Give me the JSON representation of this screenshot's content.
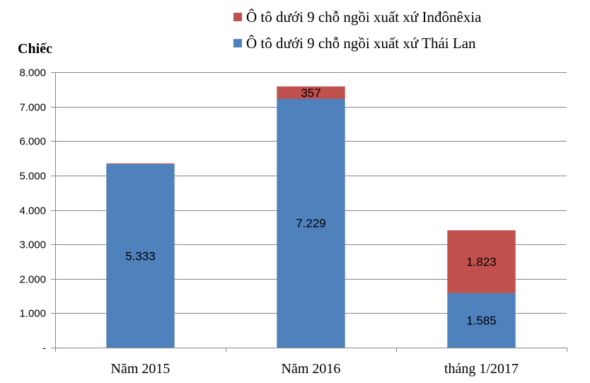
{
  "chart_data": {
    "type": "bar",
    "stacked": true,
    "ylabel": "Chiếc",
    "xlabel": "",
    "ylim": [
      0,
      8000
    ],
    "yticks": [
      0,
      1000,
      2000,
      3000,
      4000,
      5000,
      6000,
      7000,
      8000
    ],
    "ytick_labels": [
      "-",
      "1.000",
      "2.000",
      "3.000",
      "4.000",
      "5.000",
      "6.000",
      "7.000",
      "8.000"
    ],
    "grid": true,
    "legend_position": "top-right",
    "categories": [
      "Năm 2015",
      "Năm 2016",
      "tháng 1/2017"
    ],
    "series": [
      {
        "name": "Ô tô dưới 9 chỗ ngồi xuất xứ Thái Lan",
        "color": "#4f81bd",
        "values": [
          5333,
          7229,
          1585
        ],
        "labels": [
          "5.333",
          "7.229",
          "1.585"
        ]
      },
      {
        "name": "Ô tô dưới 9 chỗ ngồi xuất xứ Inđônêxia",
        "color": "#c0504d",
        "values": [
          20,
          357,
          1823
        ],
        "labels": [
          "",
          "357",
          "1.823"
        ]
      }
    ]
  }
}
